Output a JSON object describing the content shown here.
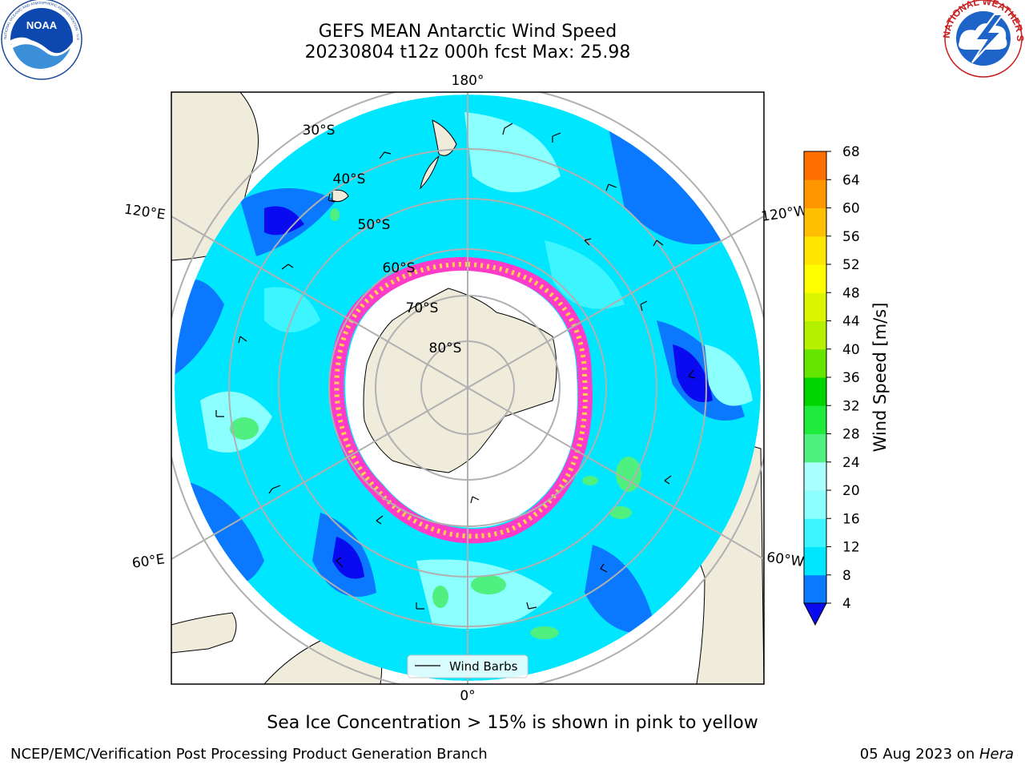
{
  "header": {
    "title_line1": "GEFS MEAN Antarctic Wind Speed",
    "title_line2": "20230804 t12z 000h fcst   Max: 25.98"
  },
  "logos": {
    "left": "NOAA",
    "left_ring": "NATIONAL OCEANIC AND ATMOSPHERIC ADMINISTRATION · U.S. DEPARTMENT OF COMMERCE",
    "right_ring": "NATIONAL WEATHER SERVICE"
  },
  "map": {
    "longitude_labels": {
      "top": "180°",
      "bottom": "0°",
      "upper_left": "120°E",
      "upper_right": "120°W",
      "lower_left": "60°E",
      "lower_right": "60°W"
    },
    "latitude_labels": [
      "30°S",
      "40°S",
      "50°S",
      "60°S",
      "70°S",
      "80°S"
    ],
    "legend_label": "Wind Barbs"
  },
  "colorbar": {
    "label": "Wind Speed [m/s]",
    "ticks": [
      "4",
      "8",
      "12",
      "16",
      "20",
      "24",
      "28",
      "32",
      "36",
      "40",
      "44",
      "48",
      "52",
      "56",
      "60",
      "64",
      "68"
    ],
    "colors": [
      "#0a0af0",
      "#0a78ff",
      "#00e6ff",
      "#3cf5ff",
      "#8cffff",
      "#aaffff",
      "#50f080",
      "#1eeb3c",
      "#00d400",
      "#64e600",
      "#b4f000",
      "#dcf500",
      "#ffff00",
      "#ffe600",
      "#ffbe00",
      "#ff9600",
      "#ff6e00",
      "#ff3c00",
      "#ff0000"
    ]
  },
  "caption": "Sea Ice Concentration > 15% is shown in pink to yellow",
  "footer": {
    "left": "NCEP/EMC/Verification Post Processing Product Generation Branch",
    "right_date": "05 Aug 2023 on ",
    "right_host": "Hera"
  }
}
